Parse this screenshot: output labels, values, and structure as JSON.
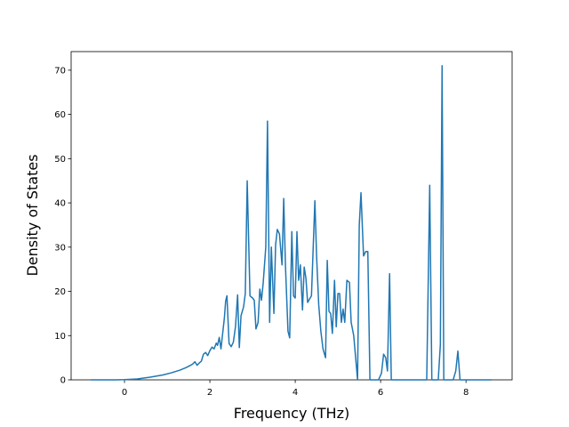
{
  "chart_data": {
    "type": "line",
    "xlabel": "Frequency (THz)",
    "ylabel": "Density of States",
    "xlim": [
      -1.25,
      9.08
    ],
    "ylim": [
      0,
      74.2
    ],
    "xticks": [
      0,
      2,
      4,
      6,
      8
    ],
    "yticks": [
      0,
      10,
      20,
      30,
      40,
      50,
      60,
      70
    ],
    "color": "#1f77b4",
    "x": [
      -0.79,
      -0.2,
      0,
      0.3,
      0.6,
      0.9,
      1.1,
      1.3,
      1.45,
      1.55,
      1.6,
      1.65,
      1.7,
      1.75,
      1.8,
      1.85,
      1.9,
      1.95,
      2.0,
      2.05,
      2.1,
      2.15,
      2.18,
      2.22,
      2.26,
      2.3,
      2.34,
      2.37,
      2.4,
      2.45,
      2.5,
      2.55,
      2.6,
      2.65,
      2.69,
      2.73,
      2.79,
      2.83,
      2.875,
      2.94,
      3.0,
      3.04,
      3.08,
      3.13,
      3.17,
      3.21,
      3.25,
      3.31,
      3.35,
      3.4,
      3.44,
      3.5,
      3.54,
      3.58,
      3.63,
      3.69,
      3.73,
      3.77,
      3.83,
      3.87,
      3.92,
      3.96,
      4.0,
      4.04,
      4.08,
      4.12,
      4.17,
      4.21,
      4.25,
      4.29,
      4.32,
      4.38,
      4.46,
      4.5,
      4.55,
      4.6,
      4.65,
      4.71,
      4.75,
      4.79,
      4.83,
      4.87,
      4.92,
      4.96,
      5.0,
      5.04,
      5.08,
      5.12,
      5.16,
      5.21,
      5.27,
      5.31,
      5.37,
      5.46,
      5.5,
      5.54,
      5.6,
      5.65,
      5.7,
      5.75,
      5.95,
      6.02,
      6.07,
      6.12,
      6.16,
      6.21,
      6.25,
      7.08,
      7.15,
      7.2,
      7.35,
      7.4,
      7.44,
      7.48,
      7.7,
      7.76,
      7.81,
      7.86,
      8.6
    ],
    "values": [
      0,
      0,
      0.05,
      0.2,
      0.6,
      1.1,
      1.6,
      2.2,
      2.8,
      3.3,
      3.6,
      4.1,
      3.3,
      3.8,
      4.2,
      5.8,
      6.2,
      5.5,
      6.6,
      7.4,
      7.0,
      8.3,
      7.8,
      9.6,
      7.0,
      10.5,
      14,
      17.8,
      19,
      8.2,
      7.5,
      8.5,
      12,
      19.2,
      7.3,
      14.5,
      16.5,
      19.5,
      45,
      19,
      18.5,
      18,
      11.5,
      13,
      20.5,
      18,
      22,
      30,
      58.5,
      13,
      30,
      15,
      30.5,
      34,
      33,
      26,
      41,
      26,
      11,
      9.5,
      33.5,
      19,
      18.5,
      33.5,
      22.5,
      26,
      15.8,
      25.5,
      23,
      17.5,
      18,
      19,
      40.5,
      28,
      17,
      11,
      7,
      5,
      27,
      15.5,
      15,
      10.5,
      22.5,
      12,
      19.5,
      19.5,
      13,
      16,
      13,
      22.5,
      22,
      13,
      10,
      0,
      35,
      42.3,
      28,
      29,
      29,
      0,
      0,
      1.5,
      5.8,
      5,
      2,
      24,
      0,
      0,
      44,
      0,
      0,
      8,
      71,
      0,
      0,
      2,
      6.5,
      0,
      0
    ]
  }
}
